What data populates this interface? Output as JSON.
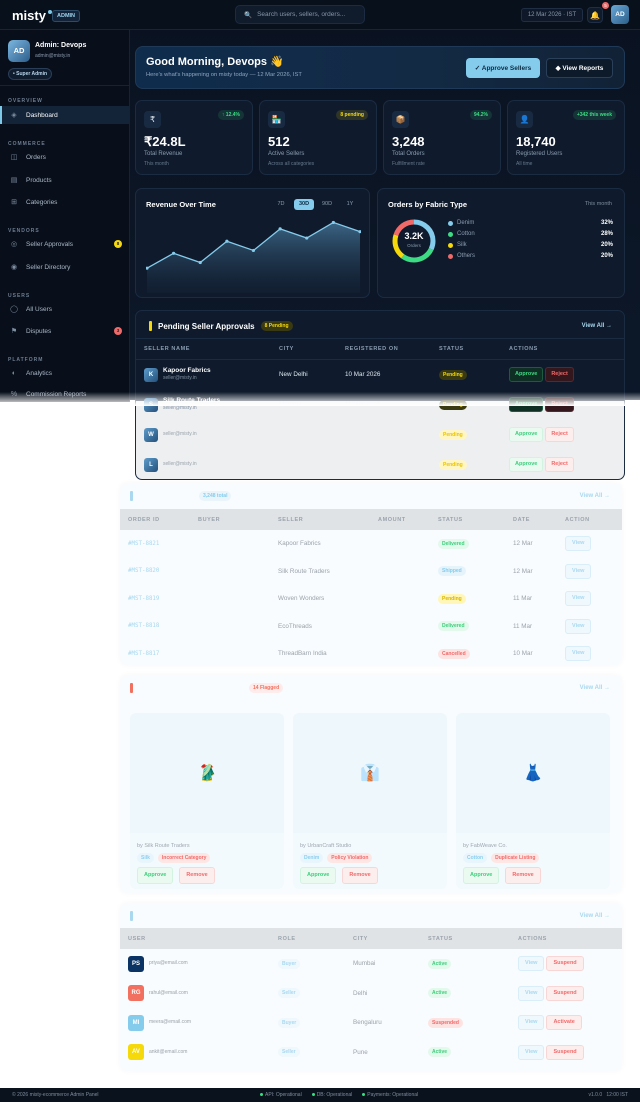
{
  "header": {
    "logo": "misty",
    "badge": "ADMIN",
    "search_placeholder": "Search users, sellers, orders...",
    "date": "12 Mar 2026 · IST",
    "notifications": "5",
    "avatar": "AD"
  },
  "sidebar": {
    "profile": {
      "initials": "AD",
      "name": "Admin: Devops",
      "email": "admin@misty.in",
      "role": "Super Admin"
    },
    "sections": [
      {
        "title": "OVERVIEW",
        "items": [
          {
            "label": "Dashboard",
            "icon": "diamond-icon",
            "glyph": "◈",
            "active": true
          }
        ]
      },
      {
        "title": "COMMERCE",
        "items": [
          {
            "label": "Orders",
            "icon": "orders-icon",
            "glyph": "◫"
          },
          {
            "label": "Products",
            "icon": "products-icon",
            "glyph": "▤"
          },
          {
            "label": "Categories",
            "icon": "categories-icon",
            "glyph": "⊞"
          }
        ]
      },
      {
        "title": "VENDORS",
        "items": [
          {
            "label": "Seller Approvals",
            "icon": "target-icon",
            "glyph": "◎",
            "badge": "8",
            "badge_color": "#f5d90a"
          },
          {
            "label": "Seller Directory",
            "icon": "directory-icon",
            "glyph": "◉"
          }
        ]
      },
      {
        "title": "USERS",
        "items": [
          {
            "label": "All Users",
            "icon": "user-icon",
            "glyph": "◯"
          },
          {
            "label": "Disputes",
            "icon": "flag-icon",
            "glyph": "⚑",
            "badge": "3",
            "badge_color": "#f06a6a"
          }
        ]
      },
      {
        "title": "PLATFORM",
        "items": [
          {
            "label": "Analytics",
            "icon": "analytics-icon",
            "glyph": "◐"
          },
          {
            "label": "Commission Reports",
            "icon": "percent-icon",
            "glyph": "%"
          }
        ]
      }
    ]
  },
  "welcome": {
    "title": "Good Morning, Devops 👋",
    "subtitle": "Here's what's happening on misty today — 12 Mar 2026, IST",
    "approve_label": "✓ Approve Sellers",
    "reports_label": "◆ View Reports"
  },
  "stats": [
    {
      "icon": "₹",
      "value": "₹24.8L",
      "label": "Total Revenue",
      "sub": "This month",
      "chip": "↑ 12.4%",
      "chip_color": "#3ddc84"
    },
    {
      "icon": "🏪",
      "value": "512",
      "label": "Active Sellers",
      "sub": "Across all categories",
      "chip": "8 pending",
      "chip_color": "#f5d90a"
    },
    {
      "icon": "📦",
      "value": "3,248",
      "label": "Total Orders",
      "sub": "Fulfillment rate",
      "chip": "94.2%",
      "chip_color": "#3ddc84"
    },
    {
      "icon": "👤",
      "value": "18,740",
      "label": "Registered Users",
      "sub": "All time",
      "chip": "+342 this week",
      "chip_color": "#3ddc84"
    }
  ],
  "chart_data": [
    {
      "type": "area",
      "title": "Revenue Over Time",
      "ranges": [
        "7D",
        "30D",
        "90D",
        "1Y"
      ],
      "selected_range": "30D",
      "values": [
        70,
        112,
        86,
        146,
        120,
        181,
        155,
        199,
        173
      ],
      "color": "#85ccec"
    },
    {
      "type": "pie",
      "title": "Orders by Fabric Type",
      "subtitle": "This month",
      "center_value": "3.2K",
      "center_label": "Orders",
      "slices": [
        {
          "name": "Denim",
          "value": 32,
          "label": "32%",
          "color": "#85ccec"
        },
        {
          "name": "Cotton",
          "value": 28,
          "label": "28%",
          "color": "#3ddc84"
        },
        {
          "name": "Silk",
          "value": 20,
          "label": "20%",
          "color": "#f5d90a"
        },
        {
          "name": "Others",
          "value": 20,
          "label": "20%",
          "color": "#f06a6a"
        }
      ]
    }
  ],
  "approvals": {
    "title": "Pending Seller Approvals",
    "count": "8 Pending",
    "view_all": "View All →",
    "columns": [
      "SELLER NAME",
      "CITY",
      "REGISTERED ON",
      "STATUS",
      "ACTIONS"
    ],
    "rows": [
      {
        "initial": "K",
        "name": "Kapoor Fabrics",
        "email": "seller@misty.in",
        "city": "New Delhi",
        "date": "10 Mar 2026",
        "status": "Pending"
      },
      {
        "initial": "S",
        "name": "Silk Route Traders",
        "email": "seller@misty.in",
        "city": "Mumbai",
        "date": "11 Mar 2026",
        "status": "Pending"
      },
      {
        "initial": "W",
        "name": "",
        "email": "seller@misty.in",
        "city": "",
        "date": "",
        "status": "Pending"
      },
      {
        "initial": "L",
        "name": "",
        "email": "seller@misty.in",
        "city": "",
        "date": "",
        "status": "Pending"
      }
    ],
    "approve": "Approve",
    "reject": "Reject"
  },
  "orders": {
    "count": "3,248 total",
    "view_all": "View All →",
    "columns": [
      "ORDER ID",
      "BUYER",
      "SELLER",
      "AMOUNT",
      "STATUS",
      "DATE",
      "ACTION"
    ],
    "rows": [
      {
        "id": "#MST-8821",
        "seller": "Kapoor Fabrics",
        "status": "Delivered",
        "date": "12 Mar"
      },
      {
        "id": "#MST-8820",
        "seller": "Silk Route Traders",
        "status": "Shipped",
        "date": "12 Mar"
      },
      {
        "id": "#MST-8819",
        "seller": "Woven Wonders",
        "status": "Pending",
        "date": "11 Mar"
      },
      {
        "id": "#MST-8818",
        "seller": "EcoThreads",
        "status": "Delivered",
        "date": "11 Mar"
      },
      {
        "id": "#MST-8817",
        "seller": "ThreadBarn India",
        "status": "Cancelled",
        "date": "10 Mar"
      }
    ],
    "view": "View"
  },
  "flagged": {
    "count": "14 Flagged",
    "view_all": "View All →",
    "items": [
      {
        "emoji": "🥻",
        "seller": "by Silk Route Traders",
        "fabric": "Silk",
        "reason": "Incorrect Category"
      },
      {
        "emoji": "👔",
        "seller": "by UrbanCraft Studio",
        "fabric": "Denim",
        "reason": "Policy Violation"
      },
      {
        "emoji": "👗",
        "seller": "by FabWeave Co.",
        "fabric": "Cotton",
        "reason": "Duplicate Listing"
      }
    ],
    "approve": "Approve",
    "remove": "Remove"
  },
  "users": {
    "view_all": "View All →",
    "columns": [
      "USER",
      "ROLE",
      "CITY",
      "STATUS",
      "ACTIONS"
    ],
    "rows": [
      {
        "initials": "PS",
        "color": "#0b3363",
        "email": "priya@email.com",
        "role": "Buyer",
        "city": "Mumbai",
        "status": "Active",
        "action": "Suspend"
      },
      {
        "initials": "RG",
        "color": "#f2705f",
        "email": "rahul@email.com",
        "role": "Seller",
        "city": "Delhi",
        "status": "Active",
        "action": "Suspend"
      },
      {
        "initials": "MI",
        "color": "#85ccec",
        "email": "meera@email.com",
        "role": "Buyer",
        "city": "Bengaluru",
        "status": "Suspended",
        "action": "Activate"
      },
      {
        "initials": "AV",
        "color": "#f5d90a",
        "email": "ankit@email.com",
        "role": "Seller",
        "city": "Pune",
        "status": "Active",
        "action": "Suspend"
      }
    ],
    "view": "View"
  },
  "footer": {
    "copyright": "© 2026 misty-ecommerce Admin Panel",
    "status": [
      "API: Operational",
      "DB: Operational",
      "Payments: Operational"
    ],
    "version": "v1.0.0",
    "time": "12:00 IST"
  }
}
